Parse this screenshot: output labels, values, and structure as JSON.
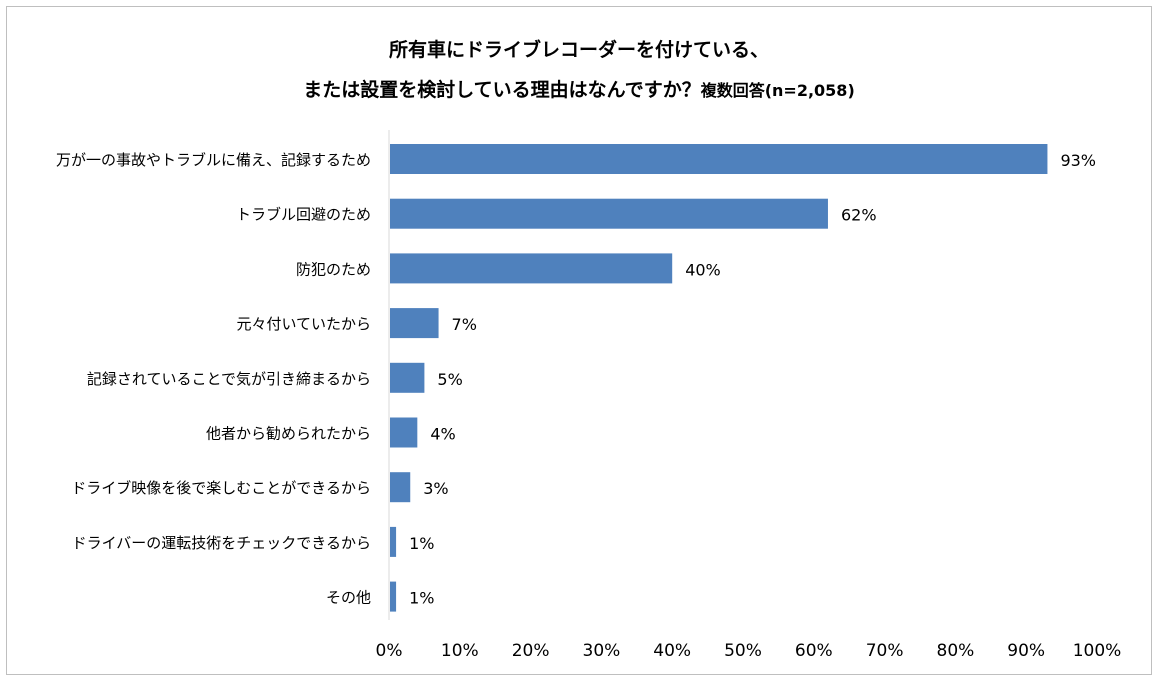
{
  "chart_data": {
    "type": "bar",
    "orientation": "horizontal",
    "title": "所有車にドライブレコーダーを付けている、",
    "title_line2": "または設置を検討している理由はなんですか？",
    "title_note": "複数回答(n=2,058)",
    "categories": [
      "万が一の事故やトラブルに備え、記録するため",
      "トラブル回避のため",
      "防犯のため",
      "元々付いていたから",
      "記録されていることで気が引き締まるから",
      "他者から勧められたから",
      "ドライブ映像を後で楽しむことができるから",
      "ドライバーの運転技術をチェックできるから",
      "その他"
    ],
    "values": [
      93,
      62,
      40,
      7,
      5,
      4,
      3,
      1,
      1
    ],
    "value_labels": [
      "93%",
      "62%",
      "40%",
      "7%",
      "5%",
      "4%",
      "3%",
      "1%",
      "1%"
    ],
    "xlim": [
      0,
      100
    ],
    "xticks": [
      "0%",
      "10%",
      "20%",
      "30%",
      "40%",
      "50%",
      "60%",
      "70%",
      "80%",
      "90%",
      "100%"
    ],
    "grid": false,
    "bar_color": "#4f81bd"
  }
}
